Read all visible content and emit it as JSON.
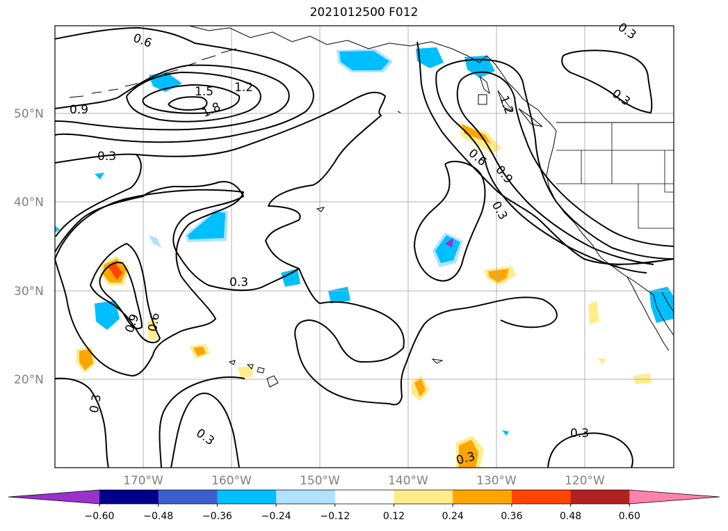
{
  "title": "2021012500 F012",
  "map": {
    "lat_labels": [
      "50°N",
      "40°N",
      "30°N",
      "20°N"
    ],
    "lon_labels": [
      "170°W",
      "160°W",
      "150°W",
      "140°W",
      "130°W",
      "120°W"
    ],
    "contour_labels": [
      "0.6",
      "1.5",
      "1.2",
      "0.9",
      "1.8",
      "0.3",
      "0.6",
      "0.9",
      "0.3",
      "0.3",
      "0.9",
      "0.6",
      "0.3",
      "0.3",
      "0.3",
      "0.3",
      "1.2",
      "0.3",
      "0.3"
    ],
    "colors": {
      "grid": "#b0b0b0",
      "coast": "#000000",
      "contour": "#000000"
    }
  },
  "colorbar": {
    "tick_labels": [
      "−0.60",
      "−0.48",
      "−0.36",
      "−0.24",
      "−0.12",
      "0.12",
      "0.24",
      "0.36",
      "0.48",
      "0.60"
    ],
    "colors": [
      "#9932cc",
      "#00008b",
      "#3a5fcd",
      "#00bfff",
      "#b0e2ff",
      "#ffffff",
      "#ffec8b",
      "#ffa500",
      "#ff4500",
      "#b22222",
      "#ff82ab"
    ]
  }
}
